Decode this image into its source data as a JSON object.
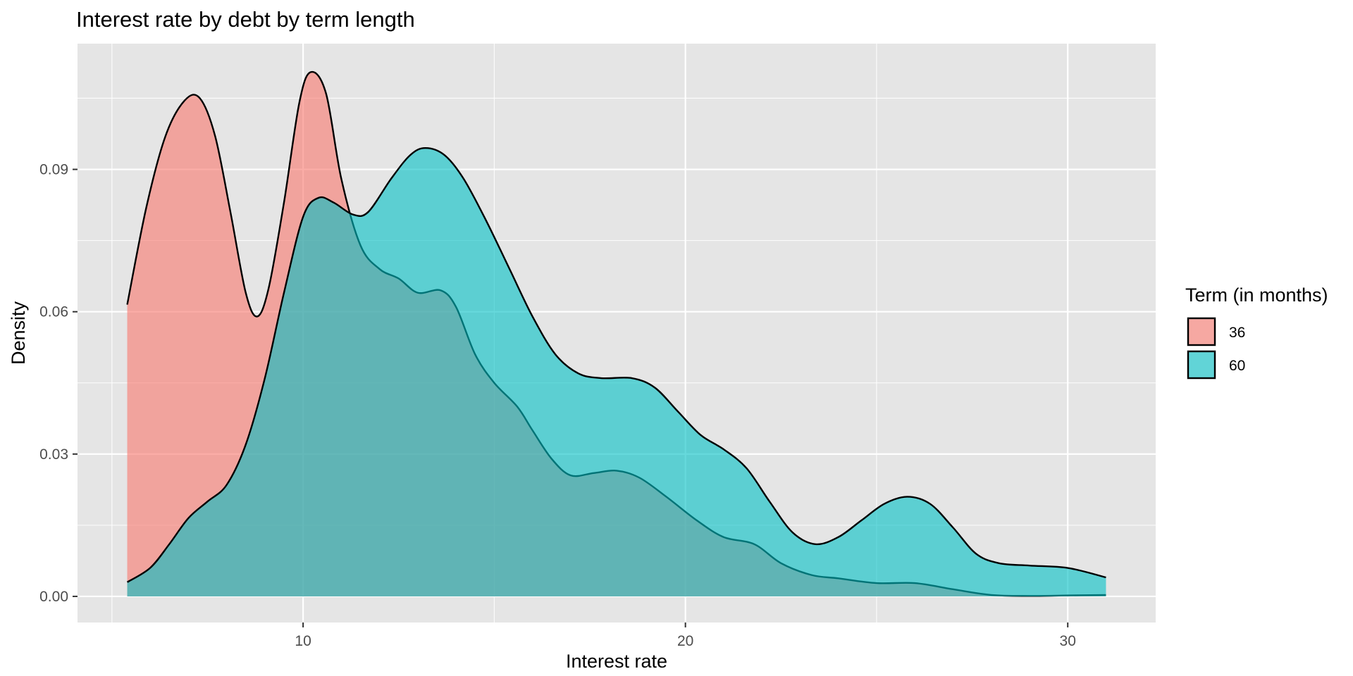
{
  "chart_data": {
    "type": "area",
    "title": "Interest rate by debt by term length",
    "xlabel": "Interest rate",
    "ylabel": "Density",
    "xlim": [
      4.1,
      32.3
    ],
    "ylim": [
      -0.0055,
      0.1165
    ],
    "x_ticks": [
      10,
      20,
      30
    ],
    "x_tick_labels": [
      "10",
      "20",
      "30"
    ],
    "y_ticks": [
      0.0,
      0.03,
      0.06,
      0.09
    ],
    "y_tick_labels": [
      "0.00",
      "0.03",
      "0.06",
      "0.09"
    ],
    "grid": true,
    "legend": {
      "title": "Term (in months)",
      "position": "right"
    },
    "colors": {
      "panel": "#e5e5e5",
      "series_36": "#F8766D",
      "series_60": "#00BFC4",
      "outline": "#000000"
    },
    "fill_opacity": 0.6,
    "series": [
      {
        "name": "36",
        "color": "#F8766D",
        "points": [
          [
            5.4,
            0.0615
          ],
          [
            5.9,
            0.082
          ],
          [
            6.4,
            0.097
          ],
          [
            6.9,
            0.1045
          ],
          [
            7.3,
            0.105
          ],
          [
            7.7,
            0.097
          ],
          [
            8.1,
            0.081
          ],
          [
            8.5,
            0.064
          ],
          [
            8.8,
            0.059
          ],
          [
            9.1,
            0.065
          ],
          [
            9.5,
            0.083
          ],
          [
            9.9,
            0.104
          ],
          [
            10.2,
            0.1105
          ],
          [
            10.6,
            0.106
          ],
          [
            11.0,
            0.088
          ],
          [
            11.5,
            0.074
          ],
          [
            12.0,
            0.069
          ],
          [
            12.5,
            0.067
          ],
          [
            13.0,
            0.064
          ],
          [
            13.6,
            0.0645
          ],
          [
            14.0,
            0.061
          ],
          [
            14.5,
            0.051
          ],
          [
            15.0,
            0.045
          ],
          [
            15.6,
            0.04
          ],
          [
            16.0,
            0.035
          ],
          [
            16.5,
            0.029
          ],
          [
            17.0,
            0.0255
          ],
          [
            17.6,
            0.026
          ],
          [
            18.2,
            0.0265
          ],
          [
            18.8,
            0.025
          ],
          [
            19.5,
            0.021
          ],
          [
            20.3,
            0.016
          ],
          [
            21.0,
            0.0125
          ],
          [
            21.8,
            0.011
          ],
          [
            22.5,
            0.007
          ],
          [
            23.3,
            0.0045
          ],
          [
            24.0,
            0.0038
          ],
          [
            25.0,
            0.0028
          ],
          [
            26.0,
            0.0028
          ],
          [
            27.0,
            0.0015
          ],
          [
            28.0,
            0.0003
          ],
          [
            29.0,
            0.0001
          ],
          [
            30.0,
            0.0002
          ],
          [
            31.0,
            0.0003
          ]
        ]
      },
      {
        "name": "60",
        "color": "#00BFC4",
        "points": [
          [
            5.4,
            0.003
          ],
          [
            6.0,
            0.006
          ],
          [
            6.5,
            0.011
          ],
          [
            7.0,
            0.0165
          ],
          [
            7.5,
            0.02
          ],
          [
            8.0,
            0.0235
          ],
          [
            8.5,
            0.032
          ],
          [
            9.0,
            0.046
          ],
          [
            9.5,
            0.064
          ],
          [
            10.0,
            0.08
          ],
          [
            10.4,
            0.084
          ],
          [
            10.8,
            0.083
          ],
          [
            11.3,
            0.0805
          ],
          [
            11.7,
            0.081
          ],
          [
            12.3,
            0.088
          ],
          [
            12.8,
            0.093
          ],
          [
            13.2,
            0.0945
          ],
          [
            13.7,
            0.093
          ],
          [
            14.2,
            0.088
          ],
          [
            14.8,
            0.079
          ],
          [
            15.4,
            0.069
          ],
          [
            16.0,
            0.059
          ],
          [
            16.6,
            0.051
          ],
          [
            17.2,
            0.047
          ],
          [
            17.8,
            0.046
          ],
          [
            18.6,
            0.046
          ],
          [
            19.2,
            0.044
          ],
          [
            19.8,
            0.039
          ],
          [
            20.4,
            0.034
          ],
          [
            21.0,
            0.031
          ],
          [
            21.6,
            0.027
          ],
          [
            22.2,
            0.02
          ],
          [
            22.8,
            0.0135
          ],
          [
            23.4,
            0.011
          ],
          [
            24.0,
            0.0125
          ],
          [
            24.6,
            0.016
          ],
          [
            25.2,
            0.0195
          ],
          [
            25.8,
            0.021
          ],
          [
            26.4,
            0.0195
          ],
          [
            27.0,
            0.0145
          ],
          [
            27.6,
            0.009
          ],
          [
            28.2,
            0.007
          ],
          [
            29.0,
            0.0065
          ],
          [
            30.0,
            0.006
          ],
          [
            31.0,
            0.004
          ]
        ]
      }
    ]
  }
}
